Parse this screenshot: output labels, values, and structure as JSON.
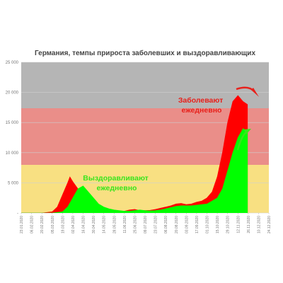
{
  "chart_data": {
    "type": "area",
    "title": "Германия, темпы прироста заболевших и выздоравливающих",
    "xlabel": "",
    "ylabel": "",
    "ylim": [
      0,
      25000
    ],
    "yticks": [
      "-",
      "5 000",
      "10 000",
      "15 000",
      "20 000",
      "25 000"
    ],
    "xticks": [
      "23.01.2020",
      "06.02.2020",
      "20.02.2020",
      "05.03.2020",
      "19.03.2020",
      "02.04.2020",
      "16.04.2020",
      "30.04.2020",
      "14.05.2020",
      "28.05.2020",
      "11.06.2020",
      "25.06.2020",
      "09.07.2020",
      "23.07.2020",
      "06.08.2020",
      "20.08.2020",
      "03.09.2020",
      "17.09.2020",
      "01.10.2020",
      "15.10.2020",
      "29.10.2020",
      "12.11.2020",
      "26.11.2020",
      "10.12.2020",
      "24.12.2020"
    ],
    "background": "flag of Germany (black, red, gold), faded",
    "grid": true,
    "series": [
      {
        "name": "Заболевают ежедневно",
        "color": "#ff0000",
        "points": [
          [
            "23.01.2020",
            0
          ],
          [
            "06.02.2020",
            0
          ],
          [
            "20.02.2020",
            0
          ],
          [
            "05.03.2020",
            200
          ],
          [
            "12.03.2020",
            1000
          ],
          [
            "19.03.2020",
            3000
          ],
          [
            "26.03.2020",
            5000
          ],
          [
            "29.03.2020",
            6000
          ],
          [
            "02.04.2020",
            5200
          ],
          [
            "09.04.2020",
            4000
          ],
          [
            "16.04.2020",
            2800
          ],
          [
            "23.04.2020",
            2000
          ],
          [
            "30.04.2020",
            1200
          ],
          [
            "07.05.2020",
            900
          ],
          [
            "14.05.2020",
            700
          ],
          [
            "21.05.2020",
            500
          ],
          [
            "28.05.2020",
            400
          ],
          [
            "04.06.2020",
            350
          ],
          [
            "11.06.2020",
            300
          ],
          [
            "18.06.2020",
            500
          ],
          [
            "25.06.2020",
            600
          ],
          [
            "02.07.2020",
            400
          ],
          [
            "09.07.2020",
            400
          ],
          [
            "16.07.2020",
            450
          ],
          [
            "23.07.2020",
            600
          ],
          [
            "30.07.2020",
            800
          ],
          [
            "06.08.2020",
            1000
          ],
          [
            "13.08.2020",
            1200
          ],
          [
            "20.08.2020",
            1500
          ],
          [
            "27.08.2020",
            1600
          ],
          [
            "03.09.2020",
            1400
          ],
          [
            "10.09.2020",
            1500
          ],
          [
            "17.09.2020",
            1800
          ],
          [
            "24.09.2020",
            2000
          ],
          [
            "01.10.2020",
            2500
          ],
          [
            "08.10.2020",
            3500
          ],
          [
            "15.10.2020",
            6000
          ],
          [
            "22.10.2020",
            10000
          ],
          [
            "29.10.2020",
            15000
          ],
          [
            "05.11.2020",
            18500
          ],
          [
            "12.11.2020",
            19500
          ],
          [
            "19.11.2020",
            18500
          ],
          [
            "25.11.2020",
            18000
          ]
        ]
      },
      {
        "name": "Выздоравливают ежедневно",
        "color": "#00ff00",
        "points": [
          [
            "23.01.2020",
            0
          ],
          [
            "06.02.2020",
            0
          ],
          [
            "20.02.2020",
            0
          ],
          [
            "05.03.2020",
            0
          ],
          [
            "19.03.2020",
            200
          ],
          [
            "26.03.2020",
            1000
          ],
          [
            "02.04.2020",
            2500
          ],
          [
            "09.04.2020",
            4000
          ],
          [
            "16.04.2020",
            4500
          ],
          [
            "23.04.2020",
            3500
          ],
          [
            "30.04.2020",
            2500
          ],
          [
            "07.05.2020",
            1500
          ],
          [
            "14.05.2020",
            1000
          ],
          [
            "21.05.2020",
            700
          ],
          [
            "28.05.2020",
            500
          ],
          [
            "04.06.2020",
            400
          ],
          [
            "11.06.2020",
            300
          ],
          [
            "18.06.2020",
            300
          ],
          [
            "25.06.2020",
            400
          ],
          [
            "02.07.2020",
            500
          ],
          [
            "09.07.2020",
            400
          ],
          [
            "16.07.2020",
            350
          ],
          [
            "23.07.2020",
            400
          ],
          [
            "30.07.2020",
            500
          ],
          [
            "06.08.2020",
            700
          ],
          [
            "13.08.2020",
            900
          ],
          [
            "20.08.2020",
            1100
          ],
          [
            "27.08.2020",
            1200
          ],
          [
            "03.09.2020",
            1200
          ],
          [
            "10.09.2020",
            1200
          ],
          [
            "17.09.2020",
            1300
          ],
          [
            "24.09.2020",
            1400
          ],
          [
            "01.10.2020",
            1500
          ],
          [
            "08.10.2020",
            2000
          ],
          [
            "15.10.2020",
            2500
          ],
          [
            "22.10.2020",
            4000
          ],
          [
            "29.10.2020",
            7000
          ],
          [
            "05.11.2020",
            10000
          ],
          [
            "12.11.2020",
            12500
          ],
          [
            "19.11.2020",
            14000
          ],
          [
            "25.11.2020",
            13500
          ]
        ]
      }
    ],
    "annotations": [
      {
        "lines": [
          "Заболевают",
          "ежедневно"
        ],
        "color": "#e8201b"
      },
      {
        "lines": [
          "Выздоравливают",
          "ежедневно"
        ],
        "color": "#38e51c"
      }
    ]
  }
}
